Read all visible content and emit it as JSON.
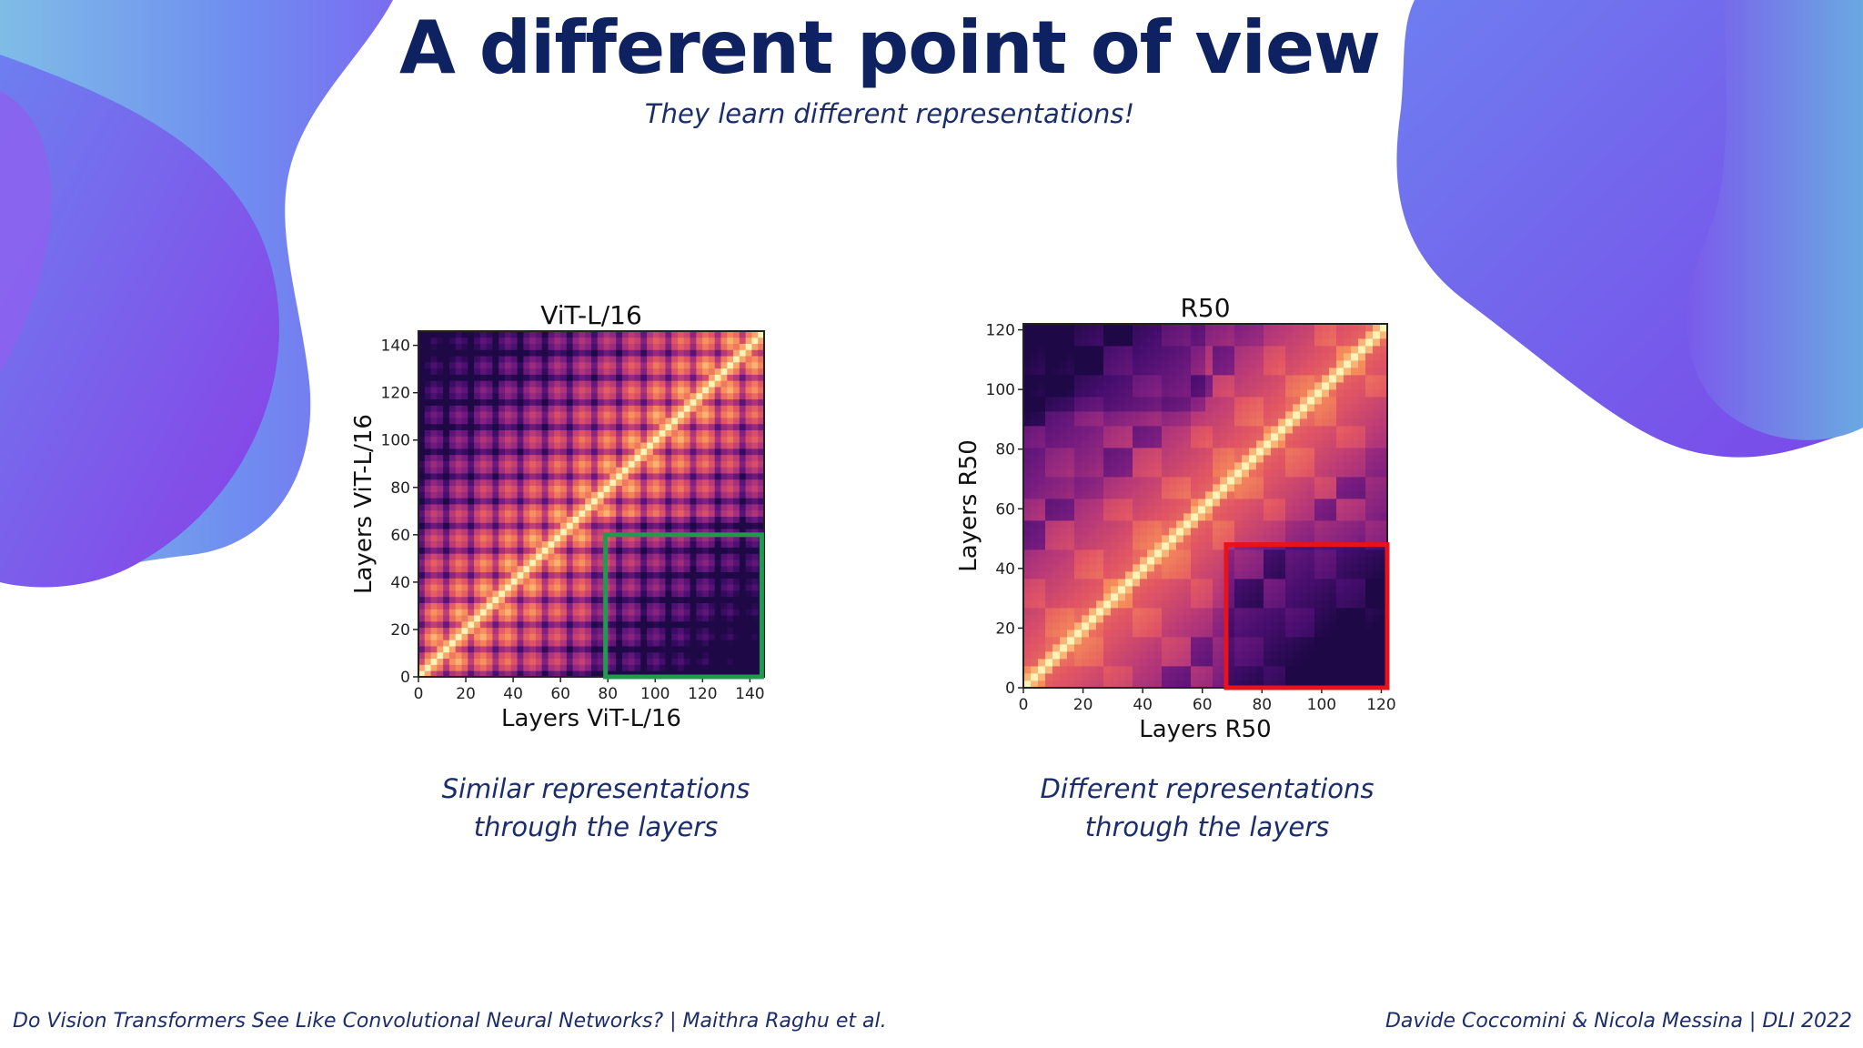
{
  "slide": {
    "title": "A different point of view",
    "subtitle": "They learn different representations!",
    "caption_left_line1": "Similar representations",
    "caption_left_line2": "through the layers",
    "caption_right_line1": "Different representations",
    "caption_right_line2": "through the layers",
    "footer_left": "Do Vision Transformers See Like Convolutional Neural Networks? | Maithra Raghu et al.",
    "footer_right": "Davide Coccomini & Nicola Messina | DLI 2022"
  },
  "colors": {
    "title": "#0e2160",
    "text": "#1b2d6b",
    "highlight_left": "#1f9a4f",
    "highlight_right": "#e8121a",
    "heatmap_low": "#2d0b55",
    "heatmap_high": "#fcf3b4"
  },
  "chart_data": [
    {
      "type": "heatmap",
      "title": "ViT-L/16",
      "xlabel": "Layers ViT-L/16",
      "ylabel": "Layers ViT-L/16",
      "xlim": [
        0,
        146
      ],
      "ylim": [
        0,
        146
      ],
      "xticks": [
        0,
        20,
        40,
        60,
        80,
        100,
        120,
        140
      ],
      "yticks": [
        0,
        20,
        40,
        60,
        80,
        100,
        120,
        140
      ],
      "highlight_box": {
        "x": [
          79,
          145
        ],
        "y": [
          0,
          60
        ],
        "color": "#1f9a4f"
      },
      "pattern": "layer-by-layer similarity; strong diagonal, high similarity in lower-left, periodic stripes; low similarity region bottom-right"
    },
    {
      "type": "heatmap",
      "title": "R50",
      "xlabel": "Layers R50",
      "ylabel": "Layers R50",
      "xlim": [
        0,
        122
      ],
      "ylim": [
        0,
        122
      ],
      "xticks": [
        0,
        20,
        40,
        60,
        80,
        100,
        120
      ],
      "yticks": [
        0,
        20,
        40,
        60,
        80,
        100,
        120
      ],
      "highlight_box": {
        "x": [
          68,
          122
        ],
        "y": [
          0,
          48
        ],
        "color": "#e8121a"
      },
      "pattern": "block-structured similarity; strong diagonal, dark low-similarity bottom-right region"
    }
  ]
}
